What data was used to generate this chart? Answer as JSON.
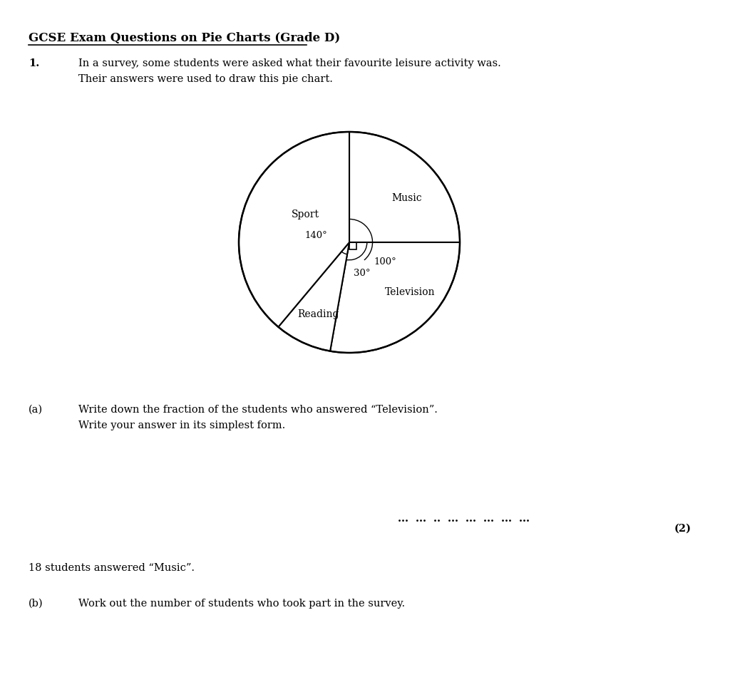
{
  "title": "GCSE Exam Questions on Pie Charts (Grade D)",
  "question_1": "In a survey, some students were asked what their favourite leisure activity was.",
  "question_1b": "Their answers were used to draw this pie chart.",
  "part_a_label": "(a)",
  "part_a_text1": "Write down the fraction of the students who answered “Television”.",
  "part_a_text2": "Write your answer in its simplest form.",
  "marks_a": "(2)",
  "music_note": "18 students answered “Music”.",
  "part_b_label": "(b)",
  "part_b_text": "Work out the number of students who took part in the survey.",
  "bg_color": "#ffffff",
  "text_color": "#000000",
  "pie_edge_color": "#000000",
  "pie_fill_color": "#ffffff",
  "font_size_title": 12,
  "font_size_body": 10.5,
  "font_size_pie_label": 10,
  "font_size_angle": 9
}
